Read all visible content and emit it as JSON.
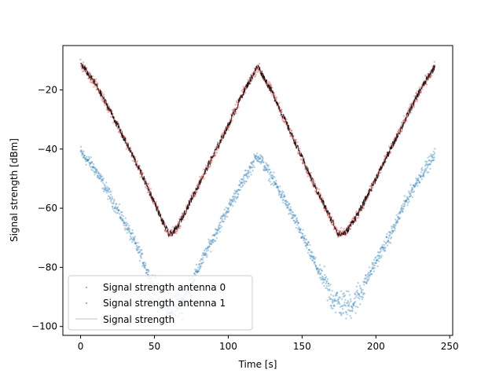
{
  "chart_data": {
    "type": "scatter",
    "xlabel": "Time [s]",
    "ylabel": "Signal strength [dBm]",
    "xlim": [
      -12,
      252
    ],
    "ylim": [
      -103,
      -5
    ],
    "xticks": [
      0,
      50,
      100,
      150,
      200,
      250
    ],
    "yticks": [
      -100,
      -80,
      -60,
      -40,
      -20
    ],
    "grid": false,
    "legend_position": "lower-left",
    "series": [
      {
        "name": "Signal strength antenna 0",
        "kind": "points",
        "color": "#1f77b4",
        "x": [
          0,
          10,
          20,
          30,
          40,
          45,
          50,
          55,
          60,
          70,
          80,
          90,
          100,
          110,
          120,
          130,
          140,
          150,
          160,
          170,
          175,
          180,
          185,
          190,
          200,
          210,
          220,
          230,
          240
        ],
        "y": [
          -41,
          -47,
          -56,
          -65,
          -75,
          -81,
          -88,
          -92,
          -95,
          -91,
          -80,
          -70,
          -60,
          -51,
          -42,
          -50,
          -59,
          -69,
          -80,
          -90,
          -92,
          -93,
          -92,
          -88,
          -78,
          -69,
          -58,
          -49,
          -42
        ]
      },
      {
        "name": "Signal strength antenna 1",
        "kind": "points",
        "color": "#d62728",
        "x": [
          0,
          10,
          20,
          30,
          40,
          50,
          55,
          60,
          65,
          70,
          80,
          90,
          100,
          110,
          120,
          130,
          140,
          150,
          160,
          170,
          175,
          180,
          190,
          200,
          210,
          220,
          230,
          240
        ],
        "y": [
          -11,
          -18,
          -27,
          -37,
          -47,
          -58,
          -64,
          -69,
          -67,
          -62,
          -52,
          -42,
          -32,
          -21,
          -12,
          -21,
          -32,
          -43,
          -54,
          -64,
          -69,
          -68,
          -60,
          -50,
          -40,
          -30,
          -20,
          -12
        ]
      },
      {
        "name": "Signal strength",
        "kind": "line",
        "color": "#000000",
        "x": [
          0,
          10,
          20,
          30,
          40,
          50,
          55,
          60,
          65,
          70,
          80,
          90,
          100,
          110,
          120,
          130,
          140,
          150,
          160,
          170,
          175,
          180,
          190,
          200,
          210,
          220,
          230,
          240
        ],
        "y": [
          -11,
          -18,
          -27,
          -37,
          -47,
          -58,
          -64,
          -69,
          -67,
          -62,
          -52,
          -42,
          -32,
          -21,
          -12,
          -21,
          -32,
          -43,
          -54,
          -64,
          -69,
          -68,
          -60,
          -50,
          -40,
          -30,
          -20,
          -12
        ]
      }
    ]
  }
}
